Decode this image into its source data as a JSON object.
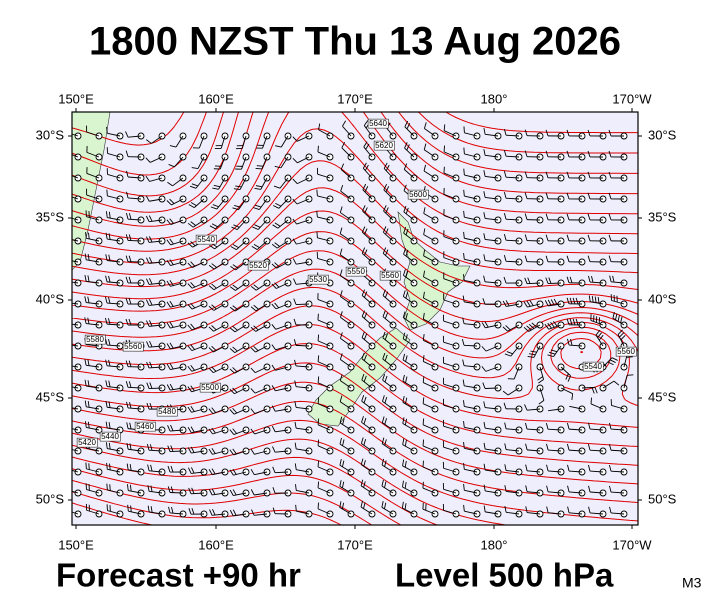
{
  "title": "1800 NZST Thu 13 Aug 2026",
  "axes": {
    "top": [
      "150°E",
      "160°E",
      "170°E",
      "180°",
      "170°W"
    ],
    "bottom": [
      "150°E",
      "160°E",
      "170°E",
      "180°",
      "170°W"
    ],
    "left": [
      "30°S",
      "35°S",
      "40°S",
      "45°S",
      "50°S"
    ],
    "right": [
      "30°S",
      "35°S",
      "40°S",
      "45°S",
      "50°S"
    ]
  },
  "contour_labels": [
    "5640",
    "5620",
    "5600",
    "5540",
    "5520",
    "5530",
    "5550",
    "5560",
    "5580",
    "5560",
    "5500",
    "5480",
    "5460",
    "5440",
    "5420",
    "5540",
    "5560"
  ],
  "footer": {
    "forecast": "Forecast +90 hr",
    "level": "Level 500 hPa",
    "model": "M3"
  }
}
